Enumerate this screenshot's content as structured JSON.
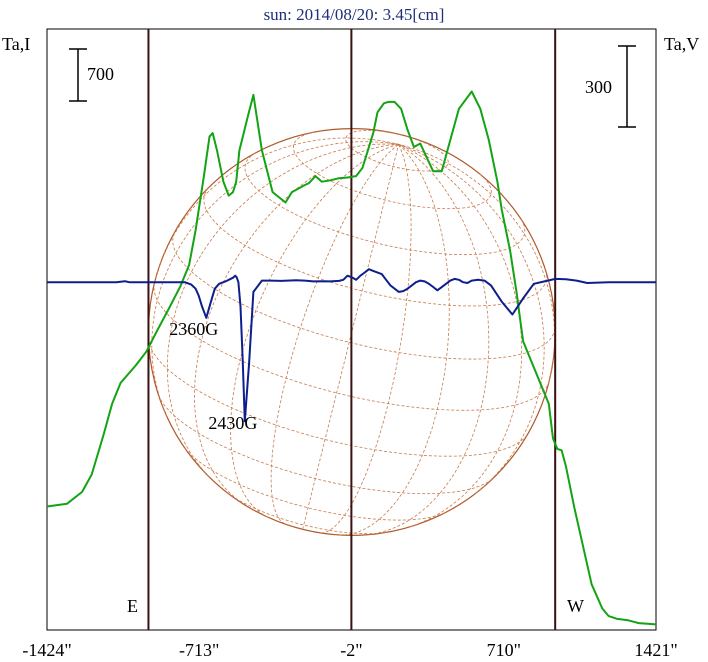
{
  "chart_data": {
    "type": "line",
    "title": "sun: 2014/08/20: 3.45[cm]",
    "left_axis_label": "Ta,I",
    "right_axis_label": "Ta,V",
    "left_scale_bar": "700",
    "right_scale_bar": "300",
    "x_ticks": [
      {
        "label": "-1424\"",
        "value": -1424
      },
      {
        "label": "-713\"",
        "value": -713
      },
      {
        "label": "-2\"",
        "value": -2
      },
      {
        "label": "710\"",
        "value": 710
      },
      {
        "label": "1421\"",
        "value": 1421
      }
    ],
    "markers": {
      "east": "E",
      "west": "W"
    },
    "xlim": [
      -1424,
      1421
    ],
    "solar_limb_x": [
      -950,
      950
    ],
    "grid": false,
    "annotations": [
      {
        "text": "2360G",
        "x": -713,
        "y": -290
      },
      {
        "text": "2430G",
        "x": -530,
        "y": -870
      }
    ],
    "series": [
      {
        "name": "I",
        "color": "#13a313",
        "axis": "left",
        "x": [
          -1424,
          -1330,
          -1260,
          -1215,
          -1160,
          -1120,
          -1080,
          -1010,
          -960,
          -910,
          -850,
          -800,
          -760,
          -730,
          -690,
          -665,
          -650,
          -630,
          -600,
          -575,
          -555,
          -540,
          -525,
          -505,
          -485,
          -460,
          -420,
          -370,
          -310,
          -280,
          -250,
          -220,
          -200,
          -170,
          -140,
          -100,
          -60,
          -20,
          20,
          50,
          70,
          100,
          120,
          150,
          170,
          200,
          230,
          260,
          290,
          320,
          350,
          380,
          420,
          460,
          500,
          560,
          600,
          640,
          680,
          700,
          740,
          770,
          800,
          880,
          920,
          940,
          960,
          980,
          1000,
          1040,
          1080,
          1120,
          1170,
          1200,
          1240,
          1290,
          1340,
          1421
        ],
        "values": [
          20,
          60,
          230,
          480,
          1050,
          1500,
          1800,
          2050,
          2250,
          2550,
          2900,
          3200,
          3500,
          4000,
          4800,
          5350,
          5400,
          5150,
          4700,
          4500,
          4550,
          4700,
          5150,
          5400,
          5650,
          5950,
          5150,
          4550,
          4400,
          4550,
          4600,
          4650,
          4680,
          4780,
          4700,
          4720,
          4750,
          4760,
          4780,
          4900,
          5100,
          5400,
          5700,
          5830,
          5850,
          5850,
          5750,
          5450,
          5200,
          5250,
          5050,
          4850,
          4850,
          5300,
          5750,
          6000,
          5750,
          5300,
          4700,
          4300,
          3700,
          3100,
          2400,
          1800,
          1500,
          1000,
          850,
          830,
          600,
          0,
          -550,
          -1100,
          -1450,
          -1560,
          -1600,
          -1620,
          -1660,
          -1680
        ]
      },
      {
        "name": "V",
        "color": "#0d1f8c",
        "axis": "right",
        "x": [
          -1424,
          -1100,
          -1060,
          -1040,
          -1000,
          -960,
          -900,
          -850,
          -820,
          -780,
          -750,
          -730,
          -715,
          -700,
          -680,
          -660,
          -640,
          -620,
          -600,
          -585,
          -570,
          -555,
          -545,
          -538,
          -530,
          -520,
          -510,
          -500,
          -480,
          -460,
          -420,
          -380,
          -330,
          -300,
          -260,
          -220,
          -180,
          -140,
          -100,
          -60,
          -40,
          -20,
          0,
          20,
          40,
          60,
          80,
          100,
          140,
          160,
          180,
          200,
          220,
          240,
          260,
          280,
          300,
          320,
          340,
          360,
          380,
          400,
          430,
          460,
          480,
          500,
          520,
          540,
          560,
          590,
          620,
          650,
          700,
          750,
          800,
          850,
          900,
          950,
          1000,
          1050,
          1100,
          1200,
          1300,
          1421
        ],
        "values": [
          0,
          0,
          6,
          0,
          0,
          0,
          0,
          0,
          0,
          0,
          -15,
          -40,
          -85,
          -150,
          -220,
          -130,
          -40,
          -10,
          0,
          8,
          18,
          28,
          40,
          30,
          0,
          -150,
          -480,
          -860,
          -500,
          -60,
          10,
          10,
          8,
          10,
          12,
          10,
          5,
          6,
          5,
          8,
          15,
          40,
          30,
          15,
          40,
          60,
          80,
          70,
          50,
          15,
          -20,
          -40,
          -60,
          -55,
          -40,
          -20,
          0,
          10,
          5,
          -10,
          -30,
          -50,
          -20,
          10,
          20,
          15,
          0,
          -5,
          10,
          15,
          10,
          -20,
          -120,
          -200,
          -100,
          -10,
          5,
          20,
          18,
          10,
          -5,
          0,
          0,
          0
        ]
      }
    ],
    "ylim_left": [
      -1760,
      6900
    ],
    "ylim_right": [
      -2150,
      1565
    ]
  }
}
